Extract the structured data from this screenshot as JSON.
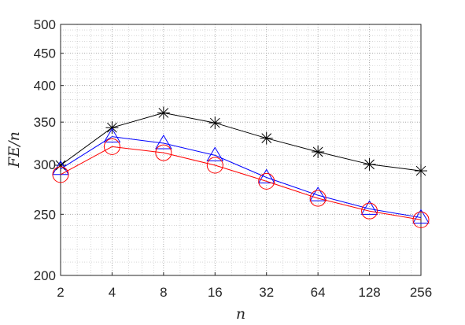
{
  "chart_data": {
    "type": "line",
    "xscale": "log2",
    "yscale": "log",
    "x": [
      2,
      4,
      8,
      16,
      32,
      64,
      128,
      256
    ],
    "xticks": [
      2,
      4,
      8,
      16,
      32,
      64,
      128,
      256
    ],
    "xtick_labels": [
      "2",
      "4",
      "8",
      "16",
      "32",
      "64",
      "128",
      "256"
    ],
    "yticks": [
      200,
      250,
      300,
      350,
      400,
      450,
      500
    ],
    "ytick_labels": [
      "200",
      "250",
      "300",
      "350",
      "400",
      "450",
      "500"
    ],
    "xlim": [
      2,
      256
    ],
    "ylim": [
      200,
      500
    ],
    "xlabel": "n",
    "ylabel": "FE/n",
    "grid": true,
    "minor_grid": true,
    "series": [
      {
        "color": "#000000",
        "marker": "asterisk",
        "values": [
          299,
          343,
          362,
          349,
          330,
          314,
          300,
          293
        ]
      },
      {
        "color": "#0000ff",
        "marker": "triangle",
        "values": [
          295,
          332,
          324,
          310,
          286,
          268,
          255,
          247
        ]
      },
      {
        "color": "#ff0000",
        "marker": "circle",
        "values": [
          289,
          320,
          313,
          299,
          282,
          265,
          253,
          245
        ]
      }
    ]
  }
}
